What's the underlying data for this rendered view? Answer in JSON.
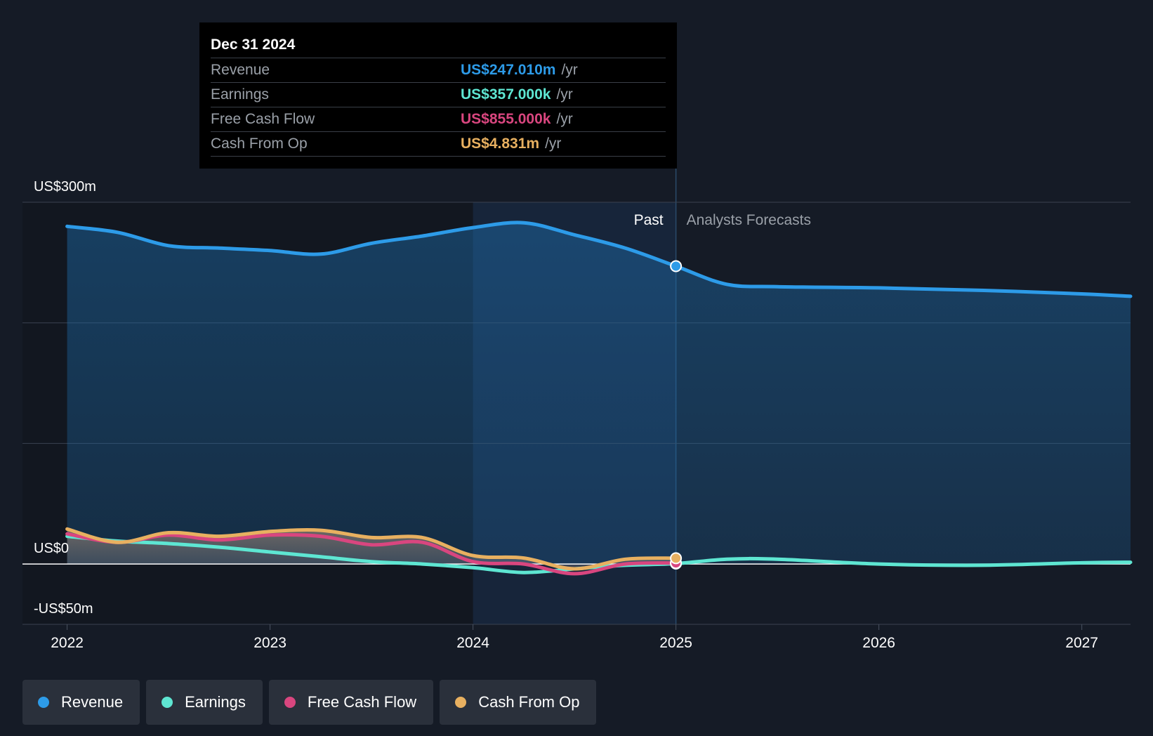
{
  "tooltip": {
    "date": "Dec 31 2024",
    "rows": [
      {
        "label": "Revenue",
        "value": "US$247.010m",
        "unit": "/yr",
        "color": "#2d9be8"
      },
      {
        "label": "Earnings",
        "value": "US$357.000k",
        "unit": "/yr",
        "color": "#5ee6d2"
      },
      {
        "label": "Free Cash Flow",
        "value": "US$855.000k",
        "unit": "/yr",
        "color": "#d9467f"
      },
      {
        "label": "Cash From Op",
        "value": "US$4.831m",
        "unit": "/yr",
        "color": "#e8b060"
      }
    ]
  },
  "legend": [
    {
      "label": "Revenue",
      "color": "#2d9be8"
    },
    {
      "label": "Earnings",
      "color": "#5ee6d2"
    },
    {
      "label": "Free Cash Flow",
      "color": "#d9467f"
    },
    {
      "label": "Cash From Op",
      "color": "#e8b060"
    }
  ],
  "chart_data": {
    "type": "line",
    "title": "",
    "past_label": "Past",
    "forecast_label": "Analysts Forecasts",
    "y_tick_labels": [
      "US$300m",
      "US$0",
      "-US$50m"
    ],
    "y_ticks": [
      300,
      0,
      -50
    ],
    "ylim": [
      -50,
      300
    ],
    "xlim": [
      2021.78,
      2027.24
    ],
    "x_ticks": [
      2022,
      2023,
      2024,
      2025,
      2026,
      2027
    ],
    "x_tick_labels": [
      "2022",
      "2023",
      "2024",
      "2025",
      "2026",
      "2027"
    ],
    "past_end": 2025.0,
    "highlight_start": 2024.0,
    "series": [
      {
        "name": "Revenue",
        "color": "#2d9be8",
        "x": [
          2022.0,
          2022.25,
          2022.5,
          2022.75,
          2023.0,
          2023.25,
          2023.5,
          2023.75,
          2024.0,
          2024.25,
          2024.5,
          2024.75,
          2025.0,
          2025.25,
          2025.5,
          2026.0,
          2026.5,
          2027.0,
          2027.24
        ],
        "values": [
          280,
          275,
          264,
          262,
          260,
          257,
          266,
          272,
          279,
          283,
          273,
          262,
          247,
          232,
          230,
          229,
          227,
          224,
          222
        ]
      },
      {
        "name": "Earnings",
        "color": "#5ee6d2",
        "x": [
          2022.0,
          2022.25,
          2022.5,
          2022.75,
          2023.0,
          2023.25,
          2023.5,
          2023.75,
          2024.0,
          2024.25,
          2024.5,
          2024.75,
          2025.0,
          2025.25,
          2025.5,
          2026.0,
          2026.5,
          2027.0,
          2027.24
        ],
        "values": [
          23,
          19,
          17,
          14,
          10,
          6,
          2,
          0,
          -3,
          -7,
          -4,
          -1,
          0.357,
          4,
          4,
          0,
          -1,
          1,
          1.5
        ]
      },
      {
        "name": "Free Cash Flow",
        "color": "#d9467f",
        "x": [
          2022.0,
          2022.25,
          2022.5,
          2022.75,
          2023.0,
          2023.25,
          2023.5,
          2023.75,
          2024.0,
          2024.25,
          2024.5,
          2024.75,
          2025.0
        ],
        "values": [
          25,
          18,
          24,
          20,
          24,
          23,
          16,
          18,
          2,
          0,
          -8,
          0,
          0.855
        ]
      },
      {
        "name": "Cash From Op",
        "color": "#e8b060",
        "x": [
          2022.0,
          2022.25,
          2022.5,
          2022.75,
          2023.0,
          2023.25,
          2023.5,
          2023.75,
          2024.0,
          2024.25,
          2024.5,
          2024.75,
          2025.0
        ],
        "values": [
          29,
          18,
          26,
          23,
          27,
          28,
          22,
          22,
          7,
          5,
          -4,
          4,
          4.831
        ]
      }
    ]
  }
}
